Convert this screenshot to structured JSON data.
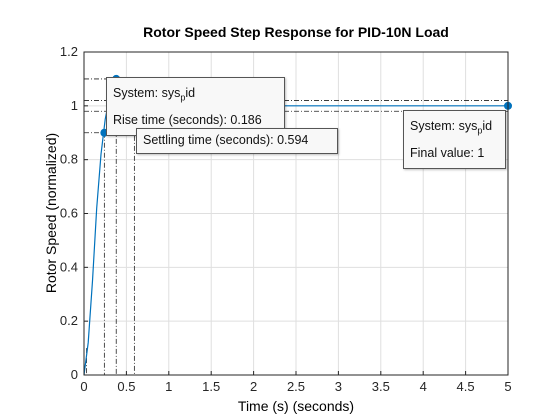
{
  "chart_data": {
    "type": "line",
    "title": "Rotor Speed Step Response for PID-10N Load",
    "xlabel": "Time (s) (seconds)",
    "ylabel": "Rotor Speed (normalized)",
    "xlim": [
      0,
      5
    ],
    "ylim": [
      0,
      1.2
    ],
    "xticks": [
      "0",
      "0.5",
      "1",
      "1.5",
      "2",
      "2.5",
      "3",
      "3.5",
      "4",
      "4.5",
      "5"
    ],
    "yticks": [
      "0",
      "0.2",
      "0.4",
      "0.6",
      "0.8",
      "1",
      "1.2"
    ],
    "grid": true,
    "series": [
      {
        "color": "#0072bd",
        "x": [
          0,
          0.05,
          0.1,
          0.15,
          0.2,
          0.25,
          0.3,
          0.35,
          0.4,
          0.45,
          0.5,
          0.6,
          0.7,
          0.8,
          1.0,
          1.5,
          2.0,
          3.0,
          4.0,
          5.0
        ],
        "y": [
          0,
          0.12,
          0.35,
          0.62,
          0.82,
          0.95,
          1.03,
          1.08,
          1.09,
          1.07,
          1.04,
          1.01,
          1.0,
          1.0,
          1.0,
          1.0,
          1.0,
          1.0,
          1.0,
          1.0
        ]
      }
    ],
    "markers": [
      {
        "x": 0.24,
        "y": 0.9
      },
      {
        "x": 0.38,
        "y": 1.1
      },
      {
        "x": 5.0,
        "y": 1.0
      }
    ],
    "annotations": {
      "rise_box": {
        "system_prefix": "System: sys",
        "system_sub": "p",
        "system_suffix": "id",
        "line2": "Rise time (seconds): 0.186"
      },
      "settling_box": {
        "line1": "Settling time (seconds): 0.594"
      },
      "final_box": {
        "system_prefix": "System: sys",
        "system_sub": "p",
        "system_suffix": "id",
        "line2": "Final value: 1"
      }
    }
  }
}
